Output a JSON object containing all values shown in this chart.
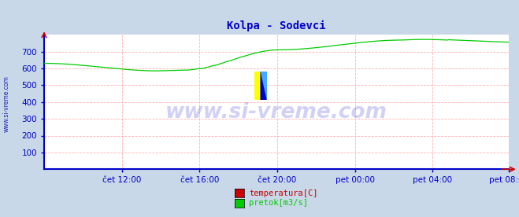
{
  "title": "Kolpa - Sodevci",
  "title_color": "#0000cc",
  "bg_color": "#c8d8e8",
  "plot_bg_color": "#ffffff",
  "grid_color": "#ffaaaa",
  "axis_color": "#0000cc",
  "watermark_text": "www.si-vreme.com",
  "watermark_color": "#0000cc",
  "watermark_alpha": 0.18,
  "side_text": "www.si-vreme.com",
  "side_color": "#0000aa",
  "ylim": [
    0,
    800
  ],
  "yticks": [
    100,
    200,
    300,
    400,
    500,
    600,
    700
  ],
  "xtick_labels": [
    "čet 12:00",
    "čet 16:00",
    "čet 20:00",
    "pet 00:00",
    "pet 04:00",
    "pet 08:00"
  ],
  "line_color_pretok": "#00cc00",
  "line_color_temp": "#cc0000",
  "legend_labels": [
    "temperatura[C]",
    "pretok[m3/s]"
  ],
  "legend_colors": [
    "#cc0000",
    "#00cc00"
  ],
  "n_points": 288,
  "x_tick_positions": [
    48,
    96,
    144,
    192,
    240,
    287
  ],
  "figsize": [
    6.59,
    2.76
  ],
  "dpi": 100
}
